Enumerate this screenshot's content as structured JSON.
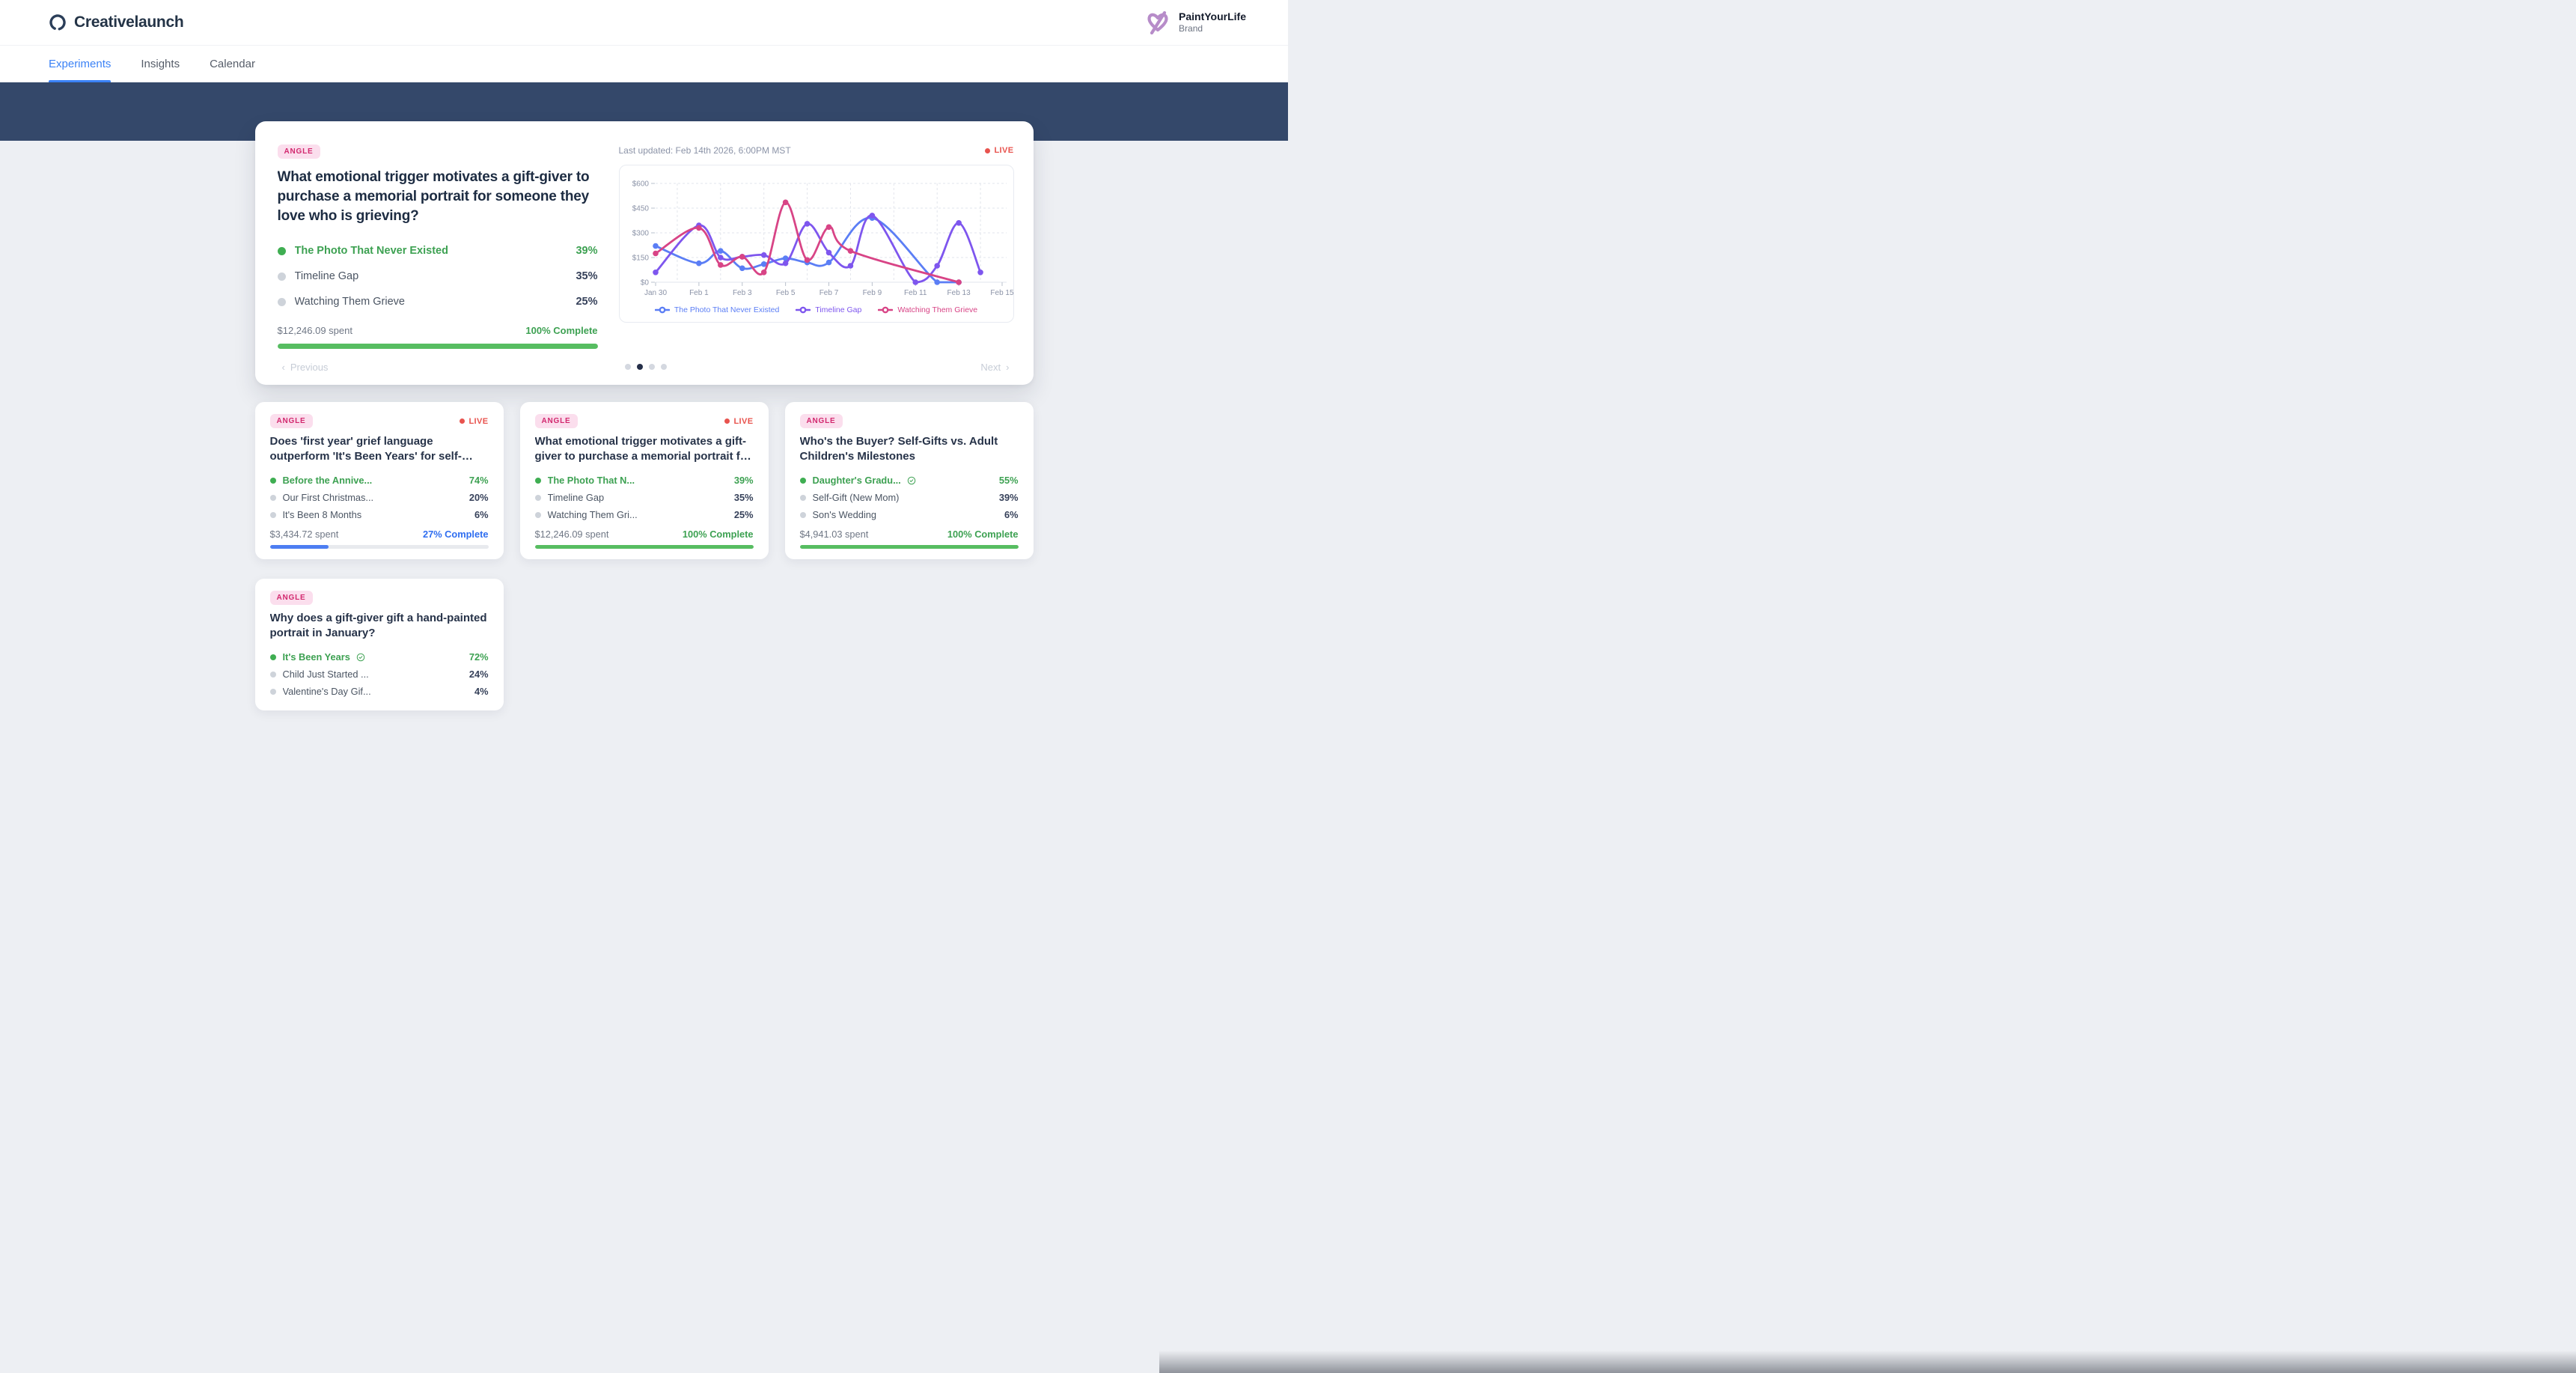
{
  "header": {
    "app_name": "Creativelaunch",
    "brand_name": "PaintYourLife",
    "brand_role": "Brand"
  },
  "tabs": [
    {
      "label": "Experiments",
      "active": true
    },
    {
      "label": "Insights",
      "active": false
    },
    {
      "label": "Calendar",
      "active": false
    }
  ],
  "colors": {
    "accent_blue": "#3b82f6",
    "band_navy": "#34486a",
    "badge_bg": "#fbdeed",
    "badge_text": "#d2286e",
    "live_red": "#e8534e",
    "green": "#3da152",
    "progress_green": "#57bd61",
    "progress_blue": "#4d7ef2",
    "complete_blue": "#2f6ef0"
  },
  "hero": {
    "badge": "ANGLE",
    "live_label": "LIVE",
    "last_updated": "Last updated: Feb 14th 2026, 6:00PM MST",
    "title": "What emotional trigger motivates a gift-giver to purchase a memorial portrait for someone they love who is grieving?",
    "variants": [
      {
        "name": "The Photo That Never Existed",
        "pct": "39%",
        "leading": true,
        "verified": false
      },
      {
        "name": "Timeline Gap",
        "pct": "35%",
        "leading": false,
        "verified": false
      },
      {
        "name": "Watching Them Grieve",
        "pct": "25%",
        "leading": false,
        "verified": false
      }
    ],
    "spent": "$12,246.09 spent",
    "complete": "100% Complete",
    "complete_color": "#3da152",
    "progress_pct": 100,
    "progress_color": "#57bd61",
    "pagination": {
      "prev": "Previous",
      "next": "Next",
      "prev_chevron": "‹",
      "next_chevron": "›",
      "dot_count": 4,
      "active_dot": 1
    }
  },
  "chart_data": {
    "type": "line",
    "y_unit": "$",
    "ylim": [
      0,
      650
    ],
    "y_ticks": [
      0,
      150,
      300,
      450,
      600
    ],
    "y_tick_labels": [
      "$0",
      "$150",
      "$300",
      "$450",
      "$600"
    ],
    "x_days": [
      "Jan 30",
      "Jan 31",
      "Feb 1",
      "Feb 2",
      "Feb 3",
      "Feb 4",
      "Feb 5",
      "Feb 6",
      "Feb 7",
      "Feb 8",
      "Feb 9",
      "Feb 10",
      "Feb 11",
      "Feb 12",
      "Feb 13",
      "Feb 14",
      "Feb 15"
    ],
    "x_tick_label_days": [
      0,
      2,
      4,
      6,
      8,
      10,
      12,
      14,
      16
    ],
    "grid": true,
    "legend_position": "bottom",
    "series": [
      {
        "name": "The Photo That Never Existed",
        "color": "#5b7ef5",
        "points": [
          [
            0,
            220
          ],
          [
            2,
            115
          ],
          [
            3,
            190
          ],
          [
            4,
            85
          ],
          [
            5,
            110
          ],
          [
            6,
            145
          ],
          [
            7,
            120
          ],
          [
            8,
            120
          ],
          [
            10,
            390
          ],
          [
            13,
            0
          ],
          [
            14,
            0
          ]
        ]
      },
      {
        "name": "Timeline Gap",
        "color": "#7e56ee",
        "points": [
          [
            0,
            60
          ],
          [
            2,
            345
          ],
          [
            3,
            150
          ],
          [
            4,
            155
          ],
          [
            5,
            165
          ],
          [
            6,
            115
          ],
          [
            7,
            355
          ],
          [
            8,
            180
          ],
          [
            9,
            100
          ],
          [
            10,
            405
          ],
          [
            12,
            0
          ],
          [
            13,
            100
          ],
          [
            14,
            360
          ],
          [
            15,
            60
          ]
        ]
      },
      {
        "name": "Watching Them Grieve",
        "color": "#d84486",
        "points": [
          [
            0,
            175
          ],
          [
            2,
            330
          ],
          [
            3,
            105
          ],
          [
            4,
            155
          ],
          [
            5,
            60
          ],
          [
            6,
            485
          ],
          [
            7,
            135
          ],
          [
            8,
            335
          ],
          [
            9,
            190
          ],
          [
            14,
            0
          ]
        ]
      }
    ]
  },
  "cards": [
    {
      "badge": "ANGLE",
      "live": true,
      "live_label": "LIVE",
      "title": "Does 'first year' grief language outperform 'It's Been Years' for self-purchase portraits?",
      "variants": [
        {
          "name": "Before the Annive...",
          "pct": "74%",
          "leading": true,
          "verified": false
        },
        {
          "name": "Our First Christmas...",
          "pct": "20%",
          "leading": false,
          "verified": false
        },
        {
          "name": "It's Been 8 Months",
          "pct": "6%",
          "leading": false,
          "verified": false
        }
      ],
      "spent": "$3,434.72 spent",
      "complete": "27% Complete",
      "complete_color": "#2f6ef0",
      "progress_pct": 27,
      "progress_color": "#4d7ef2"
    },
    {
      "badge": "ANGLE",
      "live": true,
      "live_label": "LIVE",
      "title": "What emotional trigger motivates a gift-giver to purchase a memorial portrait for someone they...",
      "variants": [
        {
          "name": "The Photo That N...",
          "pct": "39%",
          "leading": true,
          "verified": false
        },
        {
          "name": "Timeline Gap",
          "pct": "35%",
          "leading": false,
          "verified": false
        },
        {
          "name": "Watching Them Gri...",
          "pct": "25%",
          "leading": false,
          "verified": false
        }
      ],
      "spent": "$12,246.09 spent",
      "complete": "100% Complete",
      "complete_color": "#3da152",
      "progress_pct": 100,
      "progress_color": "#57bd61"
    },
    {
      "badge": "ANGLE",
      "live": false,
      "live_label": "",
      "title": "Who's the Buyer? Self-Gifts vs. Adult Children's Milestones",
      "variants": [
        {
          "name": "Daughter's Gradu...",
          "pct": "55%",
          "leading": true,
          "verified": true
        },
        {
          "name": "Self-Gift (New Mom)",
          "pct": "39%",
          "leading": false,
          "verified": false
        },
        {
          "name": "Son's Wedding",
          "pct": "6%",
          "leading": false,
          "verified": false
        }
      ],
      "spent": "$4,941.03 spent",
      "complete": "100% Complete",
      "complete_color": "#3da152",
      "progress_pct": 100,
      "progress_color": "#57bd61"
    },
    {
      "badge": "ANGLE",
      "live": false,
      "live_label": "",
      "title": "Why does a gift-giver gift a hand-painted portrait in January?",
      "variants": [
        {
          "name": "It's Been Years",
          "pct": "72%",
          "leading": true,
          "verified": true
        },
        {
          "name": "Child Just Started ...",
          "pct": "24%",
          "leading": false,
          "verified": false
        },
        {
          "name": "Valentine's Day Gif...",
          "pct": "4%",
          "leading": false,
          "verified": false
        }
      ],
      "spent": null,
      "complete": null,
      "complete_color": null,
      "progress_pct": null,
      "progress_color": null
    }
  ]
}
